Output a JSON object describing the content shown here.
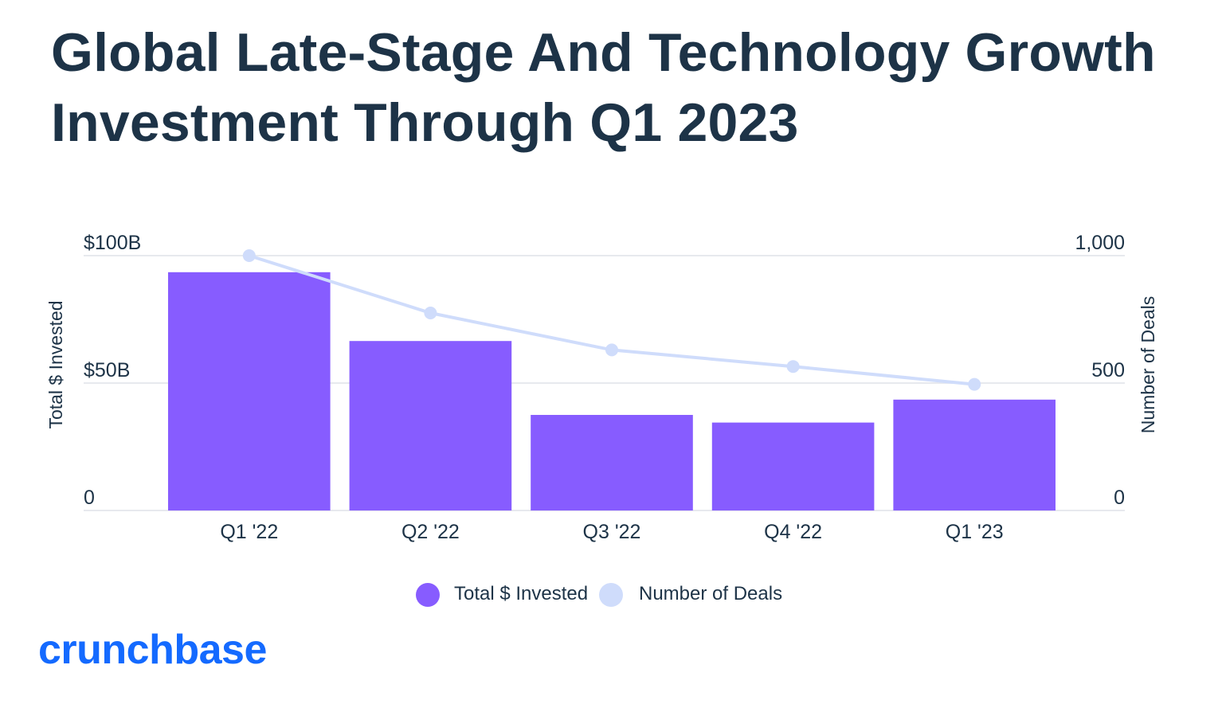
{
  "title": "Global Late-Stage And Technology Growth Investment Through Q1 2023",
  "brand": "crunchbase",
  "colors": {
    "bar": "#875cff",
    "line": "#cfdcfb",
    "grid": "#e7e9ee",
    "text": "#1d3347",
    "brand": "#146aff"
  },
  "chart_data": {
    "type": "bar",
    "categories": [
      "Q1 '22",
      "Q2 '22",
      "Q3 '22",
      "Q4 '22",
      "Q1 '23"
    ],
    "series": [
      {
        "name": "Total $ Invested",
        "type": "bar",
        "axis": "left",
        "values": [
          93.5,
          66.5,
          37.5,
          34.5,
          43.5
        ]
      },
      {
        "name": "Number of Deals",
        "type": "line",
        "axis": "right",
        "values": [
          1000,
          775,
          630,
          565,
          495
        ]
      }
    ],
    "y_left": {
      "label": "Total $ Invested",
      "lim": [
        0,
        100
      ],
      "ticks": [
        0,
        50,
        100
      ],
      "tick_labels": [
        "0",
        "$50B",
        "$100B"
      ]
    },
    "y_right": {
      "label": "Number of Deals",
      "lim": [
        0,
        1000
      ],
      "ticks": [
        0,
        500,
        1000
      ],
      "tick_labels": [
        "0",
        "500",
        "1,000"
      ]
    },
    "grid": true,
    "legend": "bottom-center"
  }
}
